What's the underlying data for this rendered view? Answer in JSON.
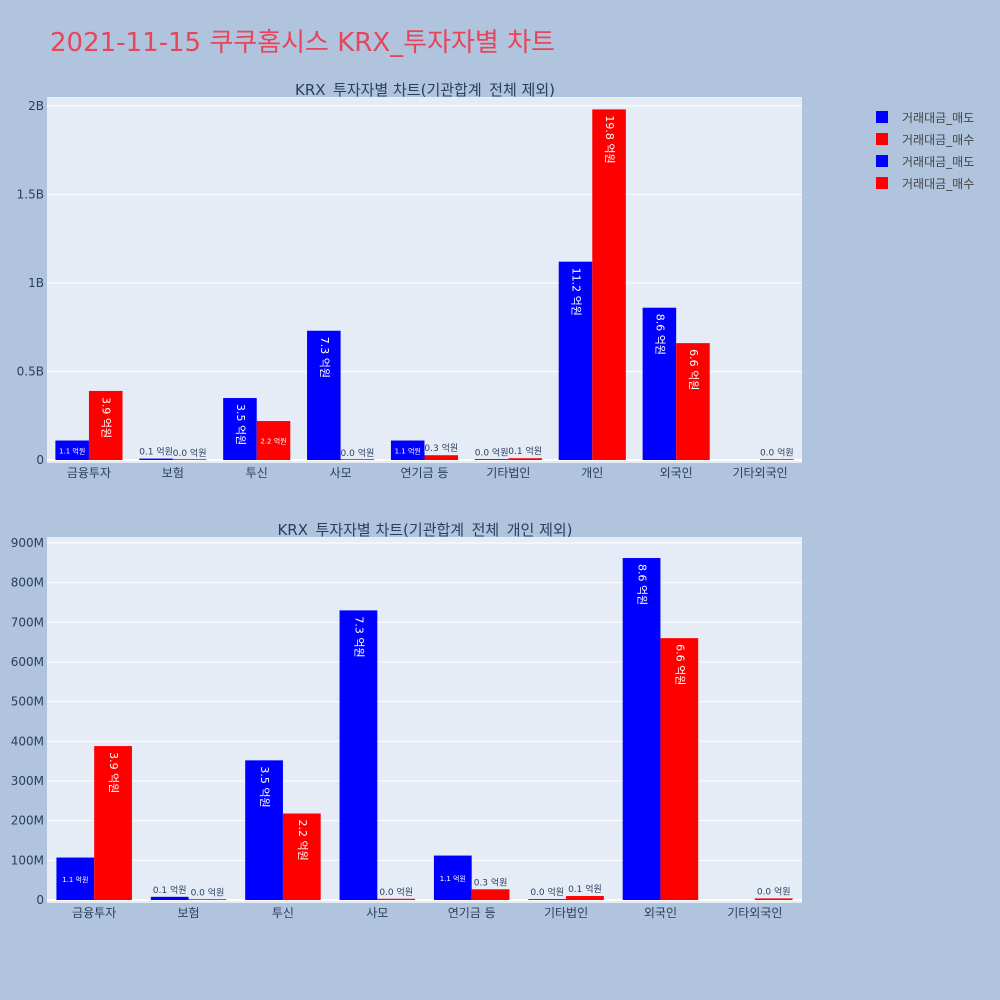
{
  "page": {
    "title": "2021-11-15 쿠쿠홈시스 KRX_투자자별 차트"
  },
  "legend": [
    {
      "label": "거래대금_매도",
      "color": "#0000ff"
    },
    {
      "label": "거래대금_매수",
      "color": "#ff0000"
    },
    {
      "label": "거래대금_매도",
      "color": "#0000ff"
    },
    {
      "label": "거래대금_매수",
      "color": "#ff0000"
    }
  ],
  "chart_data": [
    {
      "type": "bar",
      "title": "KRX_투자자별 차트(기관합계_전체 제외)",
      "categories": [
        "금융투자",
        "보험",
        "투신",
        "사모",
        "연기금 등",
        "기타법인",
        "개인",
        "외국인",
        "기타외국인"
      ],
      "ylim": [
        0,
        2050000000
      ],
      "yticks": [
        0,
        500000000,
        1000000000,
        1500000000,
        2000000000
      ],
      "ytick_labels": [
        "0",
        "0.5B",
        "1B",
        "1.5B",
        "2B"
      ],
      "series": [
        {
          "name": "거래대금_매도",
          "color": "#0000ff",
          "values": [
            110000000,
            8000000,
            350000000,
            730000000,
            110000000,
            2000000,
            1120000000,
            860000000,
            null
          ],
          "labels": [
            "1.1 억원",
            "0.1 억원",
            "3.5 억원",
            "7.3 억원",
            "1.1 억원",
            "0.0 억원",
            "11.2 억원",
            "8.6 억원",
            ""
          ]
        },
        {
          "name": "거래대금_매수",
          "color": "#ff0000",
          "values": [
            390000000,
            1000000,
            220000000,
            1000000,
            27000000,
            10000000,
            1980000000,
            660000000,
            2000000
          ],
          "labels": [
            "3.9 억원",
            "0.0 억원",
            "2.2 억원",
            "0.0 억원",
            "0.3 억원",
            "0.1 억원",
            "19.8 억원",
            "6.6 억원",
            "0.0 억원"
          ]
        }
      ],
      "grid": true,
      "legend_position": "top-right"
    },
    {
      "type": "bar",
      "title": "KRX_투자자별 차트(기관합계_전체_개인 제외)",
      "categories": [
        "금융투자",
        "보험",
        "투신",
        "사모",
        "연기금 등",
        "기타법인",
        "외국인",
        "기타외국인"
      ],
      "ylim": [
        0,
        915000000
      ],
      "yticks": [
        0,
        100000000,
        200000000,
        300000000,
        400000000,
        500000000,
        600000000,
        700000000,
        800000000,
        900000000
      ],
      "ytick_labels": [
        "0",
        "100M",
        "200M",
        "300M",
        "400M",
        "500M",
        "600M",
        "700M",
        "800M",
        "900M"
      ],
      "series": [
        {
          "name": "거래대금_매도",
          "color": "#0000ff",
          "values": [
            107000000,
            8000000,
            352000000,
            730000000,
            112000000,
            2000000,
            862000000,
            null
          ],
          "labels": [
            "1.1 억원",
            "0.1 억원",
            "3.5 억원",
            "7.3 억원",
            "1.1 억원",
            "0.0 억원",
            "8.6 억원",
            ""
          ]
        },
        {
          "name": "거래대금_매수",
          "color": "#ff0000",
          "values": [
            388000000,
            1000000,
            218000000,
            3000000,
            27000000,
            10000000,
            660000000,
            4000000
          ],
          "labels": [
            "3.9 억원",
            "0.0 억원",
            "2.2 억원",
            "0.0 억원",
            "0.3 억원",
            "0.1 억원",
            "6.6 억원",
            "0.0 억원"
          ]
        }
      ],
      "grid": true
    }
  ]
}
